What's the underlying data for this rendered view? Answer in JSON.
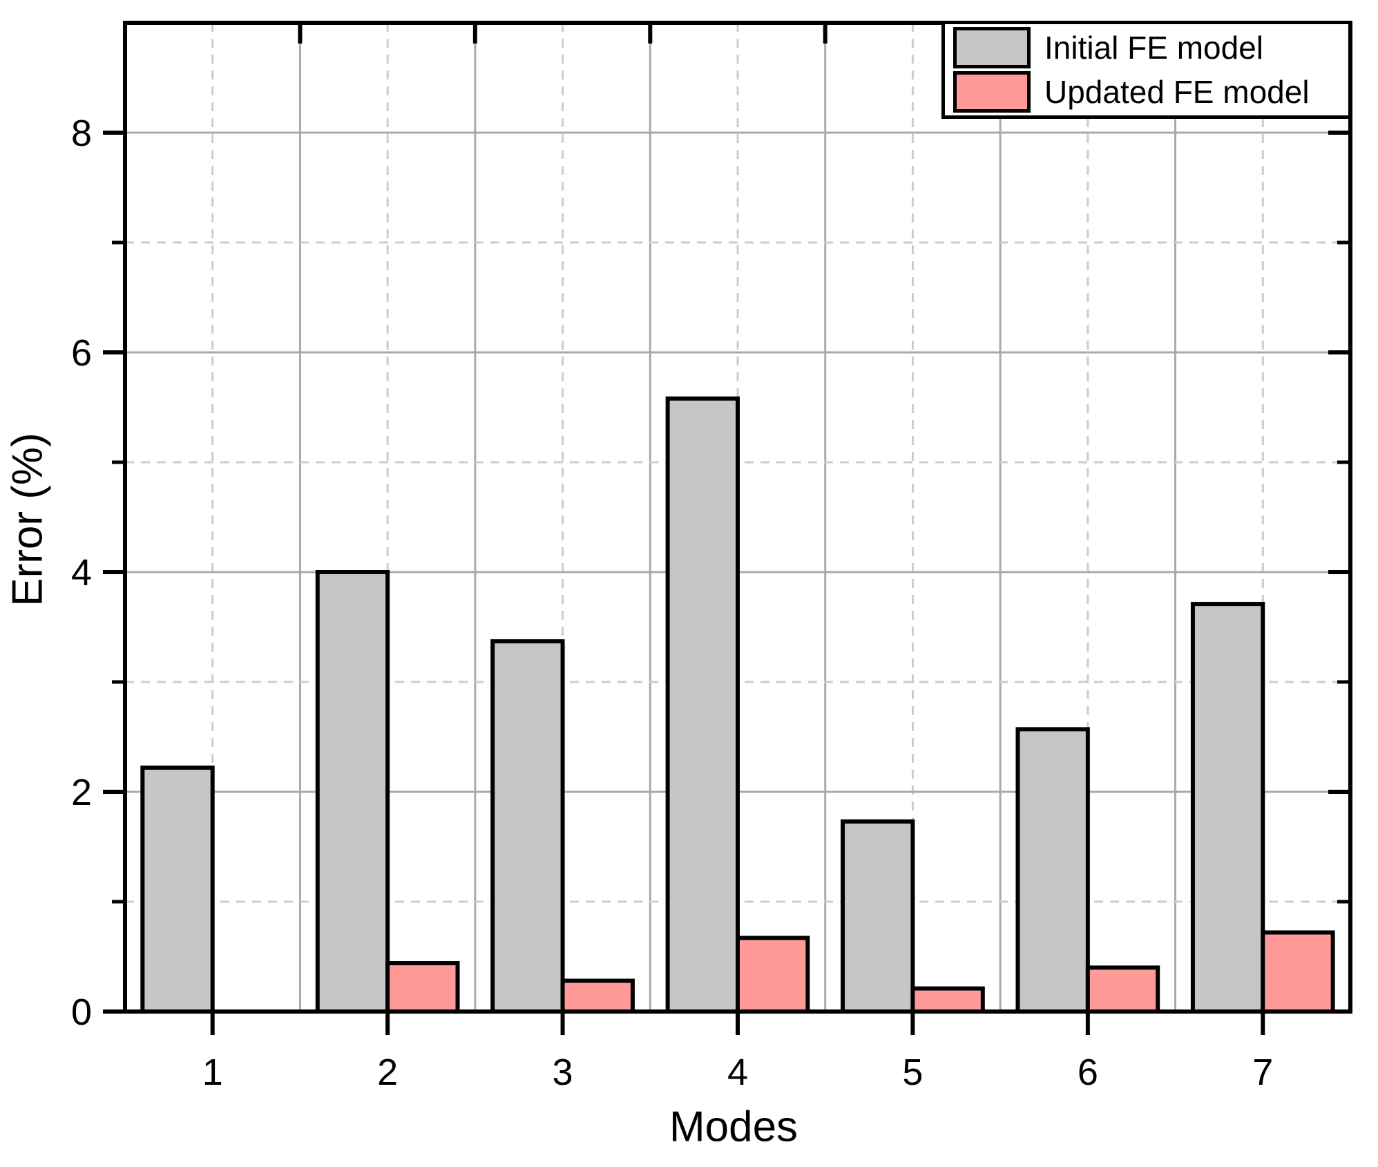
{
  "chart_data": {
    "type": "bar",
    "title": "",
    "xlabel": "Modes",
    "ylabel": "Error (%)",
    "categories": [
      1,
      2,
      3,
      4,
      5,
      6,
      7
    ],
    "series": [
      {
        "name": "Initial FE model",
        "color": "#c6c6c6",
        "values": [
          2.22,
          4.0,
          3.37,
          5.58,
          1.73,
          2.57,
          3.71
        ]
      },
      {
        "name": "Updated FE model",
        "color": "#ff9a99",
        "values": [
          0,
          0.44,
          0.28,
          0.67,
          0.21,
          0.4,
          0.72
        ]
      }
    ],
    "bar_width_units": 0.4,
    "bar_stroke_color": "#000000",
    "x_ticks": [
      1,
      2,
      3,
      4,
      5,
      6,
      7
    ],
    "y_ticks_major": [
      0,
      2,
      4,
      6,
      8
    ],
    "y_ticks_minor": [
      1,
      3,
      5,
      7
    ],
    "xlim": [
      0.5,
      7.5
    ],
    "ylim": [
      0,
      9
    ],
    "grid": {
      "h_major_solid_at": [
        2,
        4,
        6,
        8
      ],
      "h_minor_dashed_at": [
        1,
        3,
        5,
        7
      ],
      "v_solid_at": [
        1.5,
        2.5,
        3.5,
        4.5,
        5.5,
        6.5
      ],
      "v_dashed_at": [
        1,
        2,
        3,
        4,
        5,
        6,
        7
      ],
      "solid_color": "#a9a9a9",
      "dashed_color": "#cccccc"
    },
    "legend_position": "top-right"
  },
  "legend": {
    "items": [
      {
        "label": "Initial FE model",
        "color": "#c6c6c6"
      },
      {
        "label": "Updated FE model",
        "color": "#ff9a99"
      }
    ]
  }
}
